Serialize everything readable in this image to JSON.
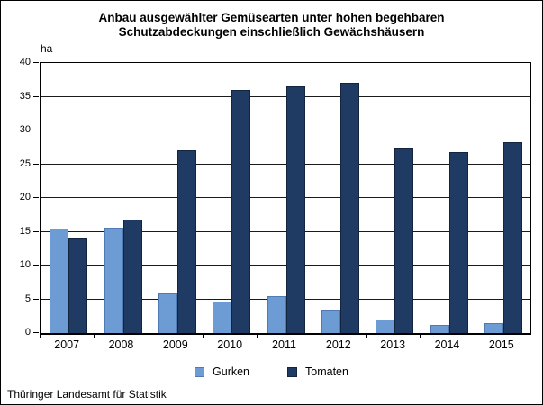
{
  "title": {
    "line1": "Anbau ausgewählter Gemüsearten unter hohen begehbaren",
    "line2": "Schutzabdeckungen einschließlich Gewächshäusern"
  },
  "chart_data": {
    "type": "bar",
    "title": "Anbau ausgewählter Gemüsearten unter hohen begehbaren Schutzabdeckungen einschließlich Gewächshäusern",
    "ylabel": "ha",
    "xlabel": "",
    "categories": [
      "2007",
      "2008",
      "2009",
      "2010",
      "2011",
      "2012",
      "2013",
      "2014",
      "2015"
    ],
    "series": [
      {
        "name": "Gurken",
        "color": "#6D9BD3",
        "border_color": "#4F7AB3",
        "values": [
          15.4,
          15.6,
          5.9,
          4.7,
          5.4,
          3.4,
          2.0,
          1.2,
          1.5
        ]
      },
      {
        "name": "Tomaten",
        "color": "#1F3A63",
        "border_color": "#12243E",
        "values": [
          14.0,
          16.8,
          27.1,
          36.0,
          36.5,
          37.1,
          27.3,
          26.8,
          28.2
        ]
      }
    ],
    "ylim": [
      0,
      40
    ],
    "yticks": [
      0,
      5,
      10,
      15,
      20,
      25,
      30,
      35,
      40
    ],
    "grid": "horizontal",
    "legend_position": "bottom-center"
  },
  "footer": {
    "source": "Thüringer Landesamt für Statistik"
  }
}
